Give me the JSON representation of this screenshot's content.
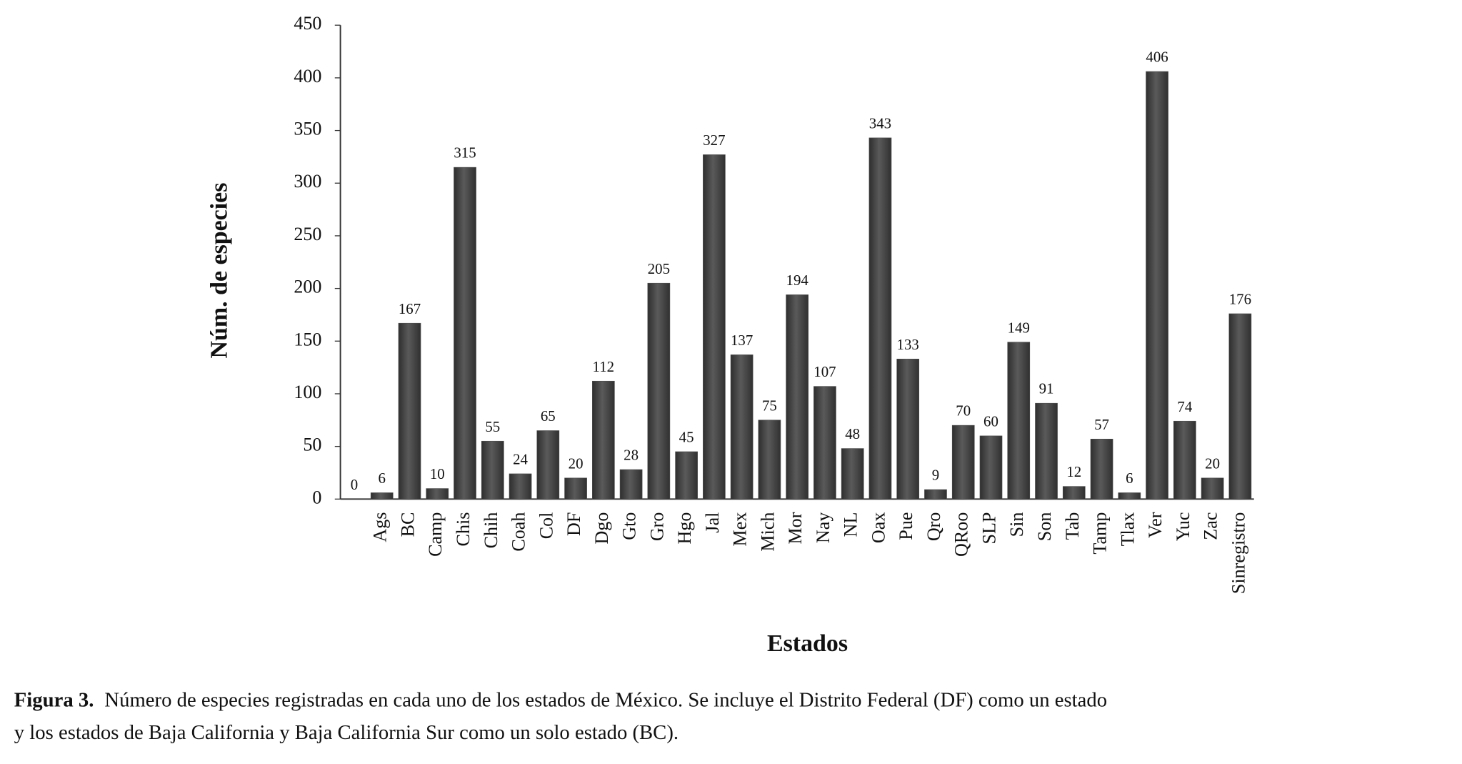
{
  "chart_data": {
    "type": "bar",
    "ylabel": "Núm. de especies",
    "xlabel": "Estados",
    "categories": [
      null,
      "Ags",
      "BC",
      "Camp",
      "Chis",
      "Chih",
      "Coah",
      "Col",
      "DF",
      "Dgo",
      "Gto",
      "Gro",
      "Hgo",
      "Jal",
      "Mex",
      "Mich",
      "Mor",
      "Nay",
      "NL",
      "Oax",
      "Pue",
      "Qro",
      "QRoo",
      "SLP",
      "Sin",
      "Son",
      "Tab",
      "Tamp",
      "Tlax",
      "Ver",
      "Yuc",
      "Zac",
      "Sinregistro"
    ],
    "values": [
      0,
      6,
      167,
      10,
      315,
      55,
      24,
      65,
      20,
      112,
      28,
      205,
      45,
      327,
      137,
      75,
      194,
      107,
      48,
      343,
      133,
      9,
      70,
      60,
      149,
      91,
      12,
      57,
      6,
      406,
      74,
      20,
      176
    ],
    "color": "#4d4d4d",
    "ylim": [
      0,
      450
    ],
    "yticks": [
      0,
      50,
      100,
      150,
      200,
      250,
      300,
      350,
      400,
      450
    ],
    "grid": false,
    "caption": {
      "label": "Figura 3.",
      "lines": [
        "Número de especies registradas en cada uno de los estados de México. Se incluye el Distrito Federal (DF) como un estado",
        "y los estados de Baja California y Baja California Sur como un solo estado (BC)."
      ]
    }
  }
}
